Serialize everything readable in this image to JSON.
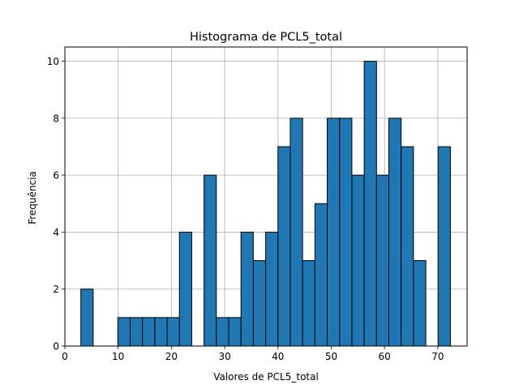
{
  "chart_data": {
    "type": "bar",
    "title": "Histograma de PCL5_total",
    "xlabel": "Valores de PCL5_total",
    "ylabel": "Frequência",
    "xlim": [
      0,
      75.5
    ],
    "ylim": [
      0,
      10.5
    ],
    "xticks": [
      0,
      10,
      20,
      30,
      40,
      50,
      60,
      70
    ],
    "yticks": [
      0,
      2,
      4,
      6,
      8,
      10
    ],
    "grid": true,
    "bar_color": "#1f77b4",
    "edge_color": "#000000",
    "bin_width": 2.31,
    "bins": [
      {
        "x0": 3.0,
        "count": 2
      },
      {
        "x0": 5.31,
        "count": 0
      },
      {
        "x0": 7.62,
        "count": 0
      },
      {
        "x0": 9.94,
        "count": 1
      },
      {
        "x0": 12.25,
        "count": 1
      },
      {
        "x0": 14.56,
        "count": 1
      },
      {
        "x0": 16.88,
        "count": 1
      },
      {
        "x0": 19.19,
        "count": 1
      },
      {
        "x0": 21.5,
        "count": 4
      },
      {
        "x0": 23.81,
        "count": 0
      },
      {
        "x0": 26.12,
        "count": 6
      },
      {
        "x0": 28.44,
        "count": 1
      },
      {
        "x0": 30.75,
        "count": 1
      },
      {
        "x0": 33.06,
        "count": 4
      },
      {
        "x0": 35.38,
        "count": 3
      },
      {
        "x0": 37.69,
        "count": 4
      },
      {
        "x0": 40.0,
        "count": 7
      },
      {
        "x0": 42.31,
        "count": 8
      },
      {
        "x0": 44.62,
        "count": 3
      },
      {
        "x0": 46.94,
        "count": 5
      },
      {
        "x0": 49.25,
        "count": 8
      },
      {
        "x0": 51.56,
        "count": 8
      },
      {
        "x0": 53.88,
        "count": 6
      },
      {
        "x0": 56.19,
        "count": 10
      },
      {
        "x0": 58.5,
        "count": 6
      },
      {
        "x0": 60.81,
        "count": 8
      },
      {
        "x0": 63.12,
        "count": 7
      },
      {
        "x0": 65.44,
        "count": 3
      },
      {
        "x0": 67.75,
        "count": 0
      },
      {
        "x0": 70.06,
        "count": 7
      }
    ]
  }
}
